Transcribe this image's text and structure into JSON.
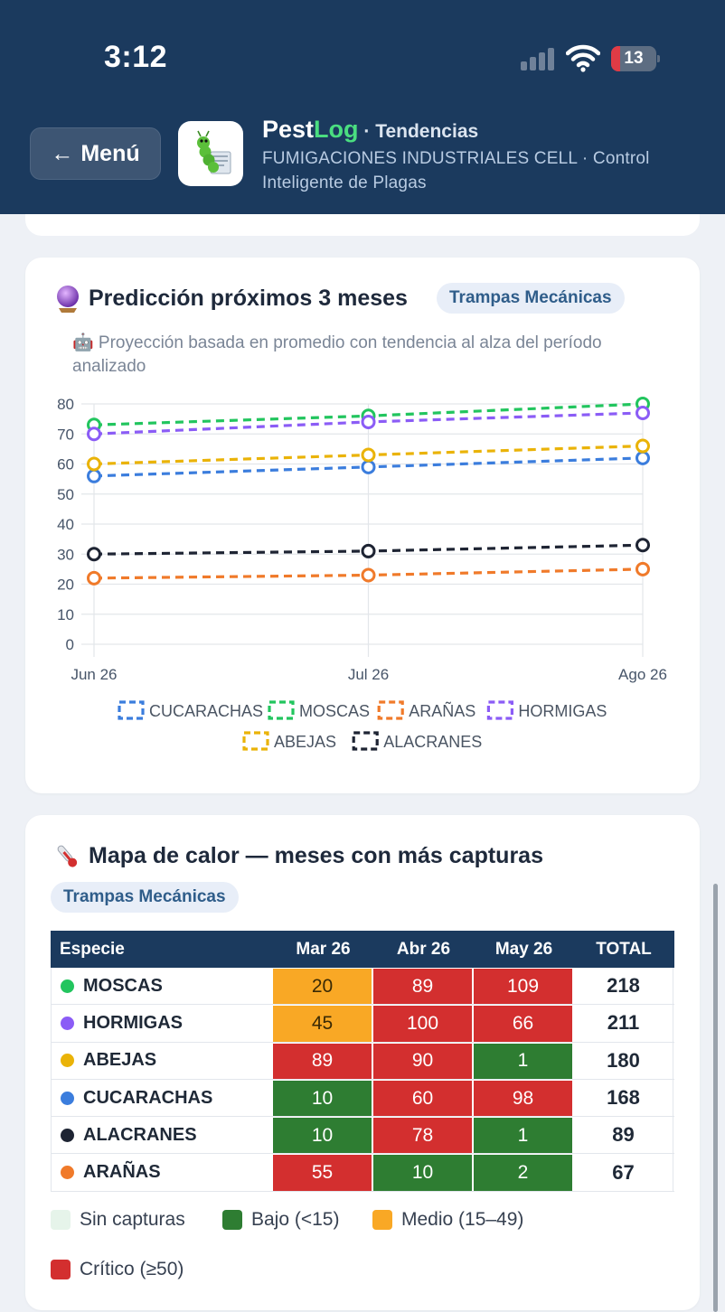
{
  "status": {
    "time": "3:12",
    "battery": "13"
  },
  "header": {
    "menu_label": "Menú",
    "app_name_a": "Pest",
    "app_name_b": "Log",
    "section": " · Tendencias",
    "company": "FUMIGACIONES INDUSTRIALES CELL · Control Inteligente de Plagas"
  },
  "prediction": {
    "title": "Predicción próximos 3 meses",
    "badge": "Trampas Mecánicas",
    "note": "🤖 Proyección basada en promedio con tendencia al alza del período analizado",
    "title_icon": "crystal-ball-icon"
  },
  "chart_data": {
    "type": "line",
    "x": [
      "Jun 26",
      "Jul 26",
      "Ago 26"
    ],
    "ylim": [
      0,
      80
    ],
    "yticks": [
      0,
      10,
      20,
      30,
      40,
      50,
      60,
      70,
      80
    ],
    "grid": true,
    "legend_position": "bottom",
    "line_style": "dashed",
    "series": [
      {
        "name": "CUCARACHAS",
        "color": "#3b7ddd",
        "values": [
          56,
          59,
          62
        ]
      },
      {
        "name": "MOSCAS",
        "color": "#22c55e",
        "values": [
          73,
          76,
          80
        ]
      },
      {
        "name": "ARAÑAS",
        "color": "#f07a2a",
        "values": [
          22,
          23,
          25
        ]
      },
      {
        "name": "HORMIGAS",
        "color": "#8b5cf6",
        "values": [
          70,
          74,
          77
        ]
      },
      {
        "name": "ABEJAS",
        "color": "#eab308",
        "values": [
          60,
          63,
          66
        ]
      },
      {
        "name": "ALACRANES",
        "color": "#1e2433",
        "values": [
          30,
          31,
          33
        ]
      }
    ]
  },
  "heatmap": {
    "title": "Mapa de calor — meses con más capturas",
    "badge": "Trampas Mecánicas",
    "title_icon": "thermometer-icon",
    "headers": {
      "species": "Especie",
      "months": [
        "Mar 26",
        "Abr 26",
        "May 26"
      ],
      "total": "TOTAL"
    },
    "rows": [
      {
        "name": "MOSCAS",
        "color": "#22c55e",
        "values": [
          "20",
          "89",
          "109"
        ],
        "levels": [
          "medio",
          "critico",
          "critico"
        ],
        "total": "218"
      },
      {
        "name": "HORMIGAS",
        "color": "#8b5cf6",
        "values": [
          "45",
          "100",
          "66"
        ],
        "levels": [
          "medio",
          "critico",
          "critico"
        ],
        "total": "211"
      },
      {
        "name": "ABEJAS",
        "color": "#eab308",
        "values": [
          "89",
          "90",
          "1"
        ],
        "levels": [
          "critico",
          "critico",
          "bajo"
        ],
        "total": "180"
      },
      {
        "name": "CUCARACHAS",
        "color": "#3b7ddd",
        "values": [
          "10",
          "60",
          "98"
        ],
        "levels": [
          "bajo",
          "critico",
          "critico"
        ],
        "total": "168"
      },
      {
        "name": "ALACRANES",
        "color": "#1e2433",
        "values": [
          "10",
          "78",
          "1"
        ],
        "levels": [
          "bajo",
          "critico",
          "bajo"
        ],
        "total": "89"
      },
      {
        "name": "ARAÑAS",
        "color": "#f07a2a",
        "values": [
          "55",
          "10",
          "2"
        ],
        "levels": [
          "critico",
          "bajo",
          "bajo"
        ],
        "total": "67"
      }
    ],
    "level_colors": {
      "sin": "#e6f4ea",
      "bajo": "#2e7d32",
      "medio": "#f9a825",
      "critico": "#d32f2f"
    },
    "legend": [
      {
        "label": "Sin capturas",
        "level": "sin"
      },
      {
        "label": "Bajo (<15)",
        "level": "bajo"
      },
      {
        "label": "Medio (15–49)",
        "level": "medio"
      },
      {
        "label": "Crítico (≥50)",
        "level": "critico"
      }
    ]
  }
}
